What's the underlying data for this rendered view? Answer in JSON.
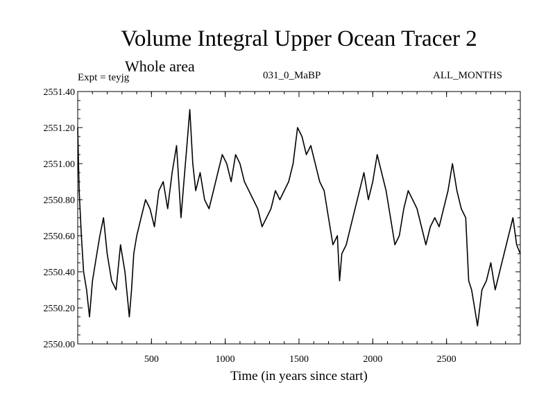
{
  "chart_data": {
    "type": "line",
    "title": "Volume Integral Upper Ocean Tracer 2",
    "subtitle": "Whole area",
    "experiment_label": "Expt = teyjg",
    "run_label": "031_0_MaBP",
    "months_label": "ALL_MONTHS",
    "xlabel": "Time (in years since start)",
    "ylabel": "",
    "xlim": [
      0,
      3000
    ],
    "ylim": [
      2550.0,
      2551.4
    ],
    "xticks": [
      500,
      1000,
      1500,
      2000,
      2500
    ],
    "xtick_labels": [
      "500",
      "1000",
      "1500",
      "2000",
      "2500"
    ],
    "yticks": [
      2550.0,
      2550.2,
      2550.4,
      2550.6,
      2550.8,
      2551.0,
      2551.2,
      2551.4
    ],
    "ytick_labels": [
      "2550.00",
      "2550.20",
      "2550.40",
      "2550.60",
      "2550.80",
      "2551.00",
      "2551.20",
      "2551.40"
    ],
    "series": [
      {
        "name": "Tracer 2",
        "color": "#000000",
        "x": [
          0,
          10,
          25,
          40,
          60,
          80,
          100,
          130,
          150,
          175,
          200,
          230,
          260,
          290,
          320,
          350,
          365,
          380,
          400,
          430,
          460,
          490,
          520,
          550,
          580,
          610,
          640,
          670,
          700,
          720,
          740,
          760,
          780,
          800,
          830,
          860,
          890,
          920,
          950,
          980,
          1010,
          1040,
          1070,
          1100,
          1130,
          1160,
          1190,
          1220,
          1250,
          1280,
          1310,
          1340,
          1370,
          1400,
          1430,
          1460,
          1490,
          1520,
          1550,
          1580,
          1610,
          1640,
          1670,
          1700,
          1730,
          1760,
          1775,
          1790,
          1820,
          1850,
          1880,
          1910,
          1940,
          1970,
          2000,
          2030,
          2060,
          2090,
          2120,
          2150,
          2180,
          2210,
          2240,
          2270,
          2300,
          2330,
          2360,
          2390,
          2420,
          2450,
          2480,
          2510,
          2540,
          2570,
          2600,
          2630,
          2650,
          2670,
          2690,
          2710,
          2740,
          2770,
          2800,
          2830,
          2860,
          2890,
          2920,
          2950,
          2975,
          3000
        ],
        "y": [
          2551.2,
          2550.85,
          2550.6,
          2550.4,
          2550.3,
          2550.15,
          2550.35,
          2550.5,
          2550.6,
          2550.7,
          2550.5,
          2550.35,
          2550.3,
          2550.55,
          2550.4,
          2550.15,
          2550.3,
          2550.5,
          2550.6,
          2550.7,
          2550.8,
          2550.75,
          2550.65,
          2550.85,
          2550.9,
          2550.75,
          2550.95,
          2551.1,
          2550.7,
          2550.9,
          2551.1,
          2551.3,
          2551.0,
          2550.85,
          2550.95,
          2550.8,
          2550.75,
          2550.85,
          2550.95,
          2551.05,
          2551.0,
          2550.9,
          2551.05,
          2551.0,
          2550.9,
          2550.85,
          2550.8,
          2550.75,
          2550.65,
          2550.7,
          2550.75,
          2550.85,
          2550.8,
          2550.85,
          2550.9,
          2551.0,
          2551.2,
          2551.15,
          2551.05,
          2551.1,
          2551.0,
          2550.9,
          2550.85,
          2550.7,
          2550.55,
          2550.6,
          2550.35,
          2550.5,
          2550.55,
          2550.65,
          2550.75,
          2550.85,
          2550.95,
          2550.8,
          2550.9,
          2551.05,
          2550.95,
          2550.85,
          2550.7,
          2550.55,
          2550.6,
          2550.75,
          2550.85,
          2550.8,
          2550.75,
          2550.65,
          2550.55,
          2550.65,
          2550.7,
          2550.65,
          2550.75,
          2550.85,
          2551.0,
          2550.85,
          2550.75,
          2550.7,
          2550.35,
          2550.3,
          2550.2,
          2550.1,
          2550.3,
          2550.35,
          2550.45,
          2550.3,
          2550.4,
          2550.5,
          2550.6,
          2550.7,
          2550.55,
          2550.5
        ]
      }
    ]
  }
}
